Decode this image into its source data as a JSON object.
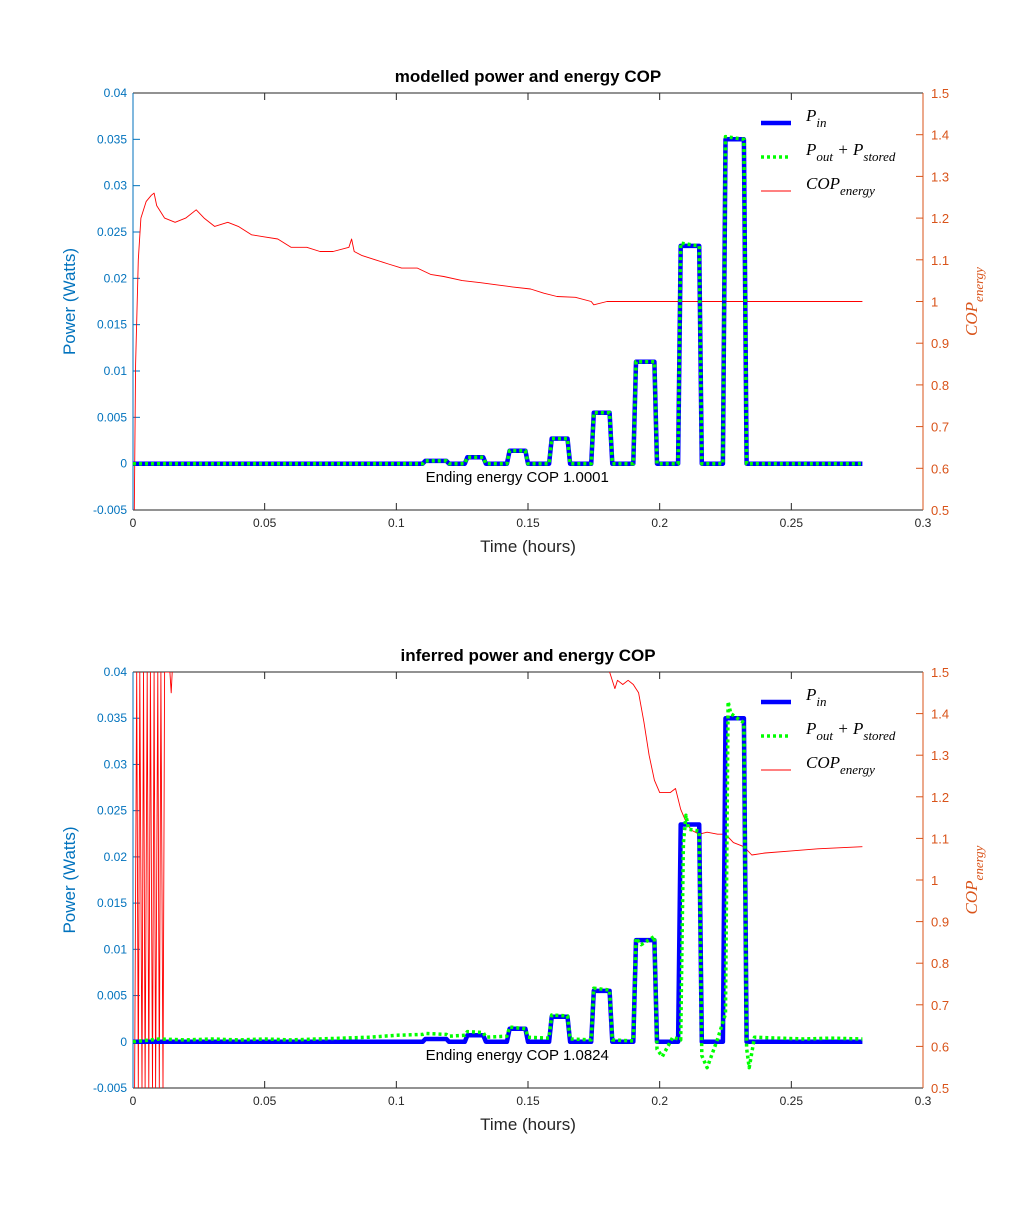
{
  "chart_data": [
    {
      "type": "line",
      "title": "modelled power and energy COP",
      "xlabel": "Time (hours)",
      "ylabel_left": "Power (Watts)",
      "ylabel_right_main": "COP",
      "ylabel_right_sub": "energy",
      "xlim": [
        0,
        0.3
      ],
      "ylim_left": [
        -0.005,
        0.04
      ],
      "ylim_right": [
        0.5,
        1.5
      ],
      "x_ticks": [
        "0",
        "0.05",
        "0.1",
        "0.15",
        "0.2",
        "0.25",
        "0.3"
      ],
      "y_ticks_left": [
        "-0.005",
        "0",
        "0.005",
        "0.01",
        "0.015",
        "0.02",
        "0.025",
        "0.03",
        "0.035",
        "0.04"
      ],
      "y_ticks_right": [
        "0.5",
        "0.6",
        "0.7",
        "0.8",
        "0.9",
        "1",
        "1.1",
        "1.2",
        "1.3",
        "1.4",
        "1.5"
      ],
      "grid": false,
      "legend_position": "top-right",
      "colors": {
        "left_axis": "#0072BD",
        "right_axis": "#D95319",
        "p_in": "#0000FF",
        "p_out": "#00FF00",
        "cop": "#FF0000"
      },
      "legend": [
        {
          "main": "P",
          "sub": "in",
          "mid": "",
          "main2": "",
          "sub2": ""
        },
        {
          "main": "P",
          "sub": "out",
          "mid": " + ",
          "main2": "P",
          "sub2": "stored"
        },
        {
          "main": "COP",
          "sub": "energy",
          "mid": "",
          "main2": "",
          "sub2": ""
        }
      ],
      "annotation": "Ending energy COP 1.0001",
      "annotation_pos": [
        0.11,
        -0.0007
      ],
      "series": [
        {
          "name": "P_in",
          "axis": "left",
          "style": "solid-thick",
          "x": [
            0,
            0.11,
            0.111,
            0.119,
            0.12,
            0.126,
            0.127,
            0.133,
            0.134,
            0.142,
            0.143,
            0.149,
            0.15,
            0.158,
            0.159,
            0.165,
            0.166,
            0.174,
            0.175,
            0.181,
            0.182,
            0.19,
            0.191,
            0.198,
            0.199,
            0.207,
            0.208,
            0.215,
            0.216,
            0.224,
            0.225,
            0.232,
            0.233,
            0.277
          ],
          "y": [
            0,
            0,
            0.0003,
            0.0003,
            0,
            0,
            0.0007,
            0.0007,
            0,
            0,
            0.0014,
            0.0014,
            0,
            0,
            0.0027,
            0.0027,
            0,
            0,
            0.0055,
            0.0055,
            0,
            0,
            0.011,
            0.011,
            0,
            0,
            0.0235,
            0.0235,
            0,
            0,
            0.035,
            0.035,
            0,
            0
          ]
        },
        {
          "name": "P_out + P_stored",
          "axis": "left",
          "style": "dotted-thick",
          "x": [
            0,
            0.11,
            0.111,
            0.119,
            0.12,
            0.126,
            0.127,
            0.133,
            0.134,
            0.142,
            0.143,
            0.149,
            0.15,
            0.158,
            0.159,
            0.165,
            0.166,
            0.174,
            0.175,
            0.181,
            0.182,
            0.19,
            0.191,
            0.198,
            0.199,
            0.207,
            0.208,
            0.215,
            0.216,
            0.224,
            0.225,
            0.232,
            0.233,
            0.277
          ],
          "y": [
            0,
            0,
            0.0003,
            0.0003,
            0,
            0,
            0.0007,
            0.0007,
            0,
            0,
            0.0014,
            0.0014,
            0,
            0,
            0.0027,
            0.0027,
            0,
            0,
            0.0055,
            0.0055,
            0,
            0,
            0.011,
            0.011,
            0,
            0,
            0.0238,
            0.0235,
            0,
            0,
            0.0353,
            0.035,
            0,
            0
          ]
        },
        {
          "name": "COP_energy",
          "axis": "right",
          "style": "thin",
          "x": [
            0.0005,
            0.001,
            0.002,
            0.003,
            0.005,
            0.007,
            0.008,
            0.009,
            0.012,
            0.016,
            0.02,
            0.024,
            0.027,
            0.031,
            0.036,
            0.04,
            0.045,
            0.05,
            0.055,
            0.06,
            0.066,
            0.071,
            0.076,
            0.082,
            0.083,
            0.084,
            0.087,
            0.092,
            0.097,
            0.102,
            0.108,
            0.113,
            0.118,
            0.125,
            0.132,
            0.138,
            0.144,
            0.151,
            0.156,
            0.161,
            0.168,
            0.174,
            0.175,
            0.18,
            0.186,
            0.195,
            0.202,
            0.21,
            0.218,
            0.225,
            0.232,
            0.24,
            0.25,
            0.26,
            0.277
          ],
          "y": [
            0.5,
            0.85,
            1.1,
            1.2,
            1.24,
            1.255,
            1.26,
            1.23,
            1.2,
            1.19,
            1.2,
            1.22,
            1.2,
            1.18,
            1.19,
            1.18,
            1.16,
            1.155,
            1.15,
            1.13,
            1.13,
            1.12,
            1.12,
            1.13,
            1.15,
            1.12,
            1.11,
            1.1,
            1.09,
            1.08,
            1.08,
            1.065,
            1.06,
            1.05,
            1.045,
            1.04,
            1.035,
            1.03,
            1.02,
            1.012,
            1.01,
            1.0,
            0.992,
            1.0,
            1.0,
            1.0,
            1.0,
            1.0,
            1.0,
            1.0,
            1.0,
            1.0,
            1.0,
            1.0,
            1.0
          ]
        }
      ]
    },
    {
      "type": "line",
      "title": "inferred power and energy COP",
      "xlabel": "Time (hours)",
      "ylabel_left": "Power (Watts)",
      "ylabel_right_main": "COP",
      "ylabel_right_sub": "energy",
      "xlim": [
        0,
        0.3
      ],
      "ylim_left": [
        -0.005,
        0.04
      ],
      "ylim_right": [
        0.5,
        1.5
      ],
      "x_ticks": [
        "0",
        "0.05",
        "0.1",
        "0.15",
        "0.2",
        "0.25",
        "0.3"
      ],
      "y_ticks_left": [
        "-0.005",
        "0",
        "0.005",
        "0.01",
        "0.015",
        "0.02",
        "0.025",
        "0.03",
        "0.035",
        "0.04"
      ],
      "y_ticks_right": [
        "0.5",
        "0.6",
        "0.7",
        "0.8",
        "0.9",
        "1",
        "1.1",
        "1.2",
        "1.3",
        "1.4",
        "1.5"
      ],
      "grid": false,
      "legend_position": "top-right",
      "colors": {
        "left_axis": "#0072BD",
        "right_axis": "#D95319",
        "p_in": "#0000FF",
        "p_out": "#00FF00",
        "cop": "#FF0000"
      },
      "legend": [
        {
          "main": "P",
          "sub": "in",
          "mid": "",
          "main2": "",
          "sub2": ""
        },
        {
          "main": "P",
          "sub": "out",
          "mid": " + ",
          "main2": "P",
          "sub2": "stored"
        },
        {
          "main": "COP",
          "sub": "energy",
          "mid": "",
          "main2": "",
          "sub2": ""
        }
      ],
      "annotation": "Ending energy COP 1.0824",
      "annotation_pos": [
        0.11,
        -0.0007
      ],
      "series": [
        {
          "name": "P_in",
          "axis": "left",
          "style": "solid-thick",
          "x": [
            0,
            0.11,
            0.111,
            0.119,
            0.12,
            0.126,
            0.127,
            0.133,
            0.134,
            0.142,
            0.143,
            0.149,
            0.15,
            0.158,
            0.159,
            0.165,
            0.166,
            0.174,
            0.175,
            0.181,
            0.182,
            0.19,
            0.191,
            0.198,
            0.199,
            0.207,
            0.208,
            0.215,
            0.216,
            0.224,
            0.225,
            0.232,
            0.233,
            0.277
          ],
          "y": [
            0,
            0,
            0.0003,
            0.0003,
            0,
            0,
            0.0007,
            0.0007,
            0,
            0,
            0.0014,
            0.0014,
            0,
            0,
            0.0027,
            0.0027,
            0,
            0,
            0.0055,
            0.0055,
            0,
            0,
            0.011,
            0.011,
            0,
            0,
            0.0235,
            0.0235,
            0,
            0,
            0.035,
            0.035,
            0,
            0
          ]
        },
        {
          "name": "P_out + P_stored",
          "axis": "left",
          "style": "dotted-thick",
          "x": [
            0,
            0.01,
            0.02,
            0.03,
            0.04,
            0.05,
            0.06,
            0.07,
            0.08,
            0.09,
            0.1,
            0.11,
            0.111,
            0.119,
            0.12,
            0.126,
            0.127,
            0.133,
            0.134,
            0.142,
            0.143,
            0.149,
            0.15,
            0.158,
            0.159,
            0.165,
            0.166,
            0.174,
            0.175,
            0.181,
            0.182,
            0.19,
            0.191,
            0.193,
            0.198,
            0.199,
            0.201,
            0.205,
            0.208,
            0.209,
            0.21,
            0.211,
            0.215,
            0.216,
            0.218,
            0.222,
            0.225,
            0.226,
            0.227,
            0.232,
            0.233,
            0.234,
            0.236,
            0.245,
            0.255,
            0.265,
            0.277
          ],
          "y": [
            0,
            0.0003,
            0.0002,
            0.0003,
            0.0002,
            0.0003,
            0.0002,
            0.0003,
            0.0004,
            0.0005,
            0.0007,
            0.0008,
            0.0009,
            0.0008,
            0.0006,
            0.0007,
            0.0011,
            0.001,
            0.0005,
            0.0006,
            0.0016,
            0.0014,
            0.0005,
            0.0004,
            0.0029,
            0.0028,
            0.0003,
            0.0002,
            0.0058,
            0.0056,
            0.0002,
            0.0001,
            0.0112,
            0.0105,
            0.0114,
            -0.0008,
            -0.0016,
            0.0005,
            0.0002,
            0.0215,
            0.0245,
            0.023,
            0.0228,
            -0.0015,
            -0.0028,
            0.0003,
            0.003,
            0.0368,
            0.0355,
            0.0345,
            -0.0007,
            -0.0028,
            0.0005,
            0.0004,
            0.0003,
            0.0004,
            0.0003
          ]
        },
        {
          "name": "COP_energy",
          "axis": "right",
          "style": "thin",
          "x": [
            0.0006,
            0.0014,
            0.002,
            0.0026,
            0.0034,
            0.004,
            0.0046,
            0.0054,
            0.006,
            0.0066,
            0.0074,
            0.008,
            0.0086,
            0.0094,
            0.01,
            0.0106,
            0.0114,
            0.012,
            0.0126,
            0.0134,
            0.014,
            0.0145,
            0.0149
          ],
          "y": [
            0.5,
            1.5,
            0.5,
            1.5,
            0.5,
            1.5,
            0.5,
            1.5,
            0.5,
            1.5,
            0.5,
            1.5,
            0.5,
            1.5,
            0.5,
            1.5,
            0.5,
            1.5,
            1.5,
            1.5,
            1.5,
            1.45,
            1.5
          ],
          "x2": [
            0.181,
            0.183,
            0.184,
            0.186,
            0.188,
            0.19,
            0.192,
            0.194,
            0.196,
            0.198,
            0.2,
            0.202,
            0.204,
            0.206,
            0.208,
            0.21,
            0.212,
            0.215,
            0.218,
            0.222,
            0.225,
            0.228,
            0.232,
            0.235,
            0.24,
            0.25,
            0.26,
            0.277
          ],
          "y2": [
            1.5,
            1.46,
            1.48,
            1.47,
            1.48,
            1.47,
            1.45,
            1.38,
            1.3,
            1.24,
            1.21,
            1.21,
            1.21,
            1.22,
            1.17,
            1.14,
            1.12,
            1.11,
            1.115,
            1.11,
            1.11,
            1.09,
            1.08,
            1.06,
            1.065,
            1.07,
            1.075,
            1.08
          ]
        }
      ]
    }
  ]
}
